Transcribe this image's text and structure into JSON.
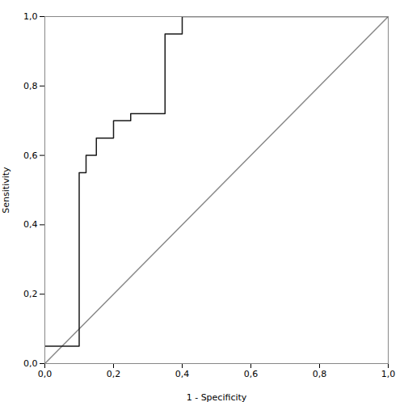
{
  "chart_data": {
    "type": "line",
    "xlabel": "1 - Specificity",
    "ylabel": "Sensitivity",
    "series": [
      {
        "color": "#888888",
        "x": [
          0.0,
          1.0
        ],
        "values": [
          0.0,
          1.0
        ]
      },
      {
        "color": "#1a1a1a",
        "x": [
          0.0,
          0.1,
          0.1,
          0.12,
          0.12,
          0.15,
          0.15,
          0.2,
          0.2,
          0.25,
          0.25,
          0.35,
          0.35,
          0.4,
          0.4,
          0.6,
          0.6,
          1.0
        ],
        "values": [
          0.05,
          0.05,
          0.55,
          0.55,
          0.6,
          0.6,
          0.65,
          0.65,
          0.7,
          0.7,
          0.72,
          0.72,
          0.95,
          0.95,
          1.0,
          1.0,
          1.0,
          1.0
        ]
      }
    ],
    "xlim": [
      0.0,
      1.0
    ],
    "ylim": [
      0.0,
      1.0
    ],
    "xticks": [
      {
        "value": 0.0,
        "label": "0,0"
      },
      {
        "value": 0.2,
        "label": "0,2"
      },
      {
        "value": 0.4,
        "label": "0,4"
      },
      {
        "value": 0.6,
        "label": "0,6"
      },
      {
        "value": 0.8,
        "label": "0,8"
      },
      {
        "value": 1.0,
        "label": "1,0"
      }
    ],
    "yticks": [
      {
        "value": 0.0,
        "label": "0,0"
      },
      {
        "value": 0.2,
        "label": "0,2"
      },
      {
        "value": 0.4,
        "label": "0,4"
      },
      {
        "value": 0.6,
        "label": "0,6"
      },
      {
        "value": 0.8,
        "label": "0,8"
      },
      {
        "value": 1.0,
        "label": "1,0"
      }
    ]
  }
}
